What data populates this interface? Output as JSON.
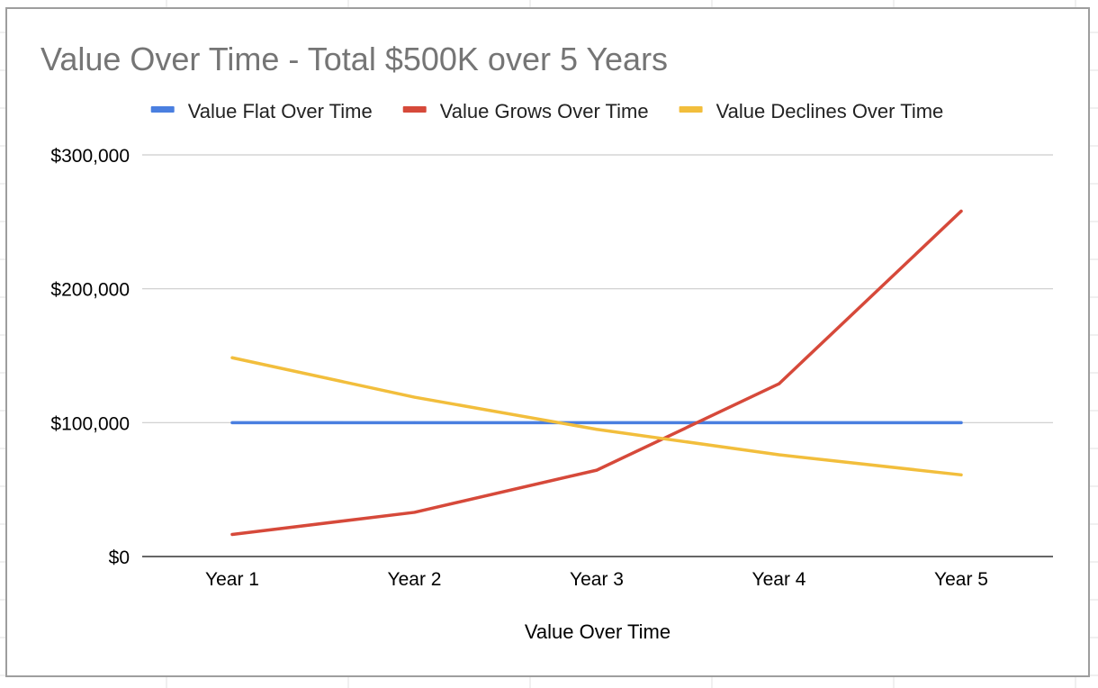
{
  "colors": {
    "flat": "#4a7fe0",
    "grows": "#d6493a",
    "declines": "#f2be3c",
    "gridline": "#cccccc",
    "axis": "#333333",
    "spreadsheet_grid": "#e2e2e2",
    "chart_border": "#9e9e9e"
  },
  "chart_data": {
    "type": "line",
    "title": "Value Over Time - Total $500K over 5 Years",
    "xlabel": "Value Over Time",
    "ylabel": "",
    "categories": [
      "Year 1",
      "Year 2",
      "Year 3",
      "Year 4",
      "Year 5"
    ],
    "ylim": [
      0,
      300000
    ],
    "yticks": [
      0,
      100000,
      200000,
      300000
    ],
    "ytick_labels": [
      "$0",
      "$100,000",
      "$200,000",
      "$300,000"
    ],
    "grid": true,
    "legend_position": "top",
    "series": [
      {
        "name": "Value Flat Over Time",
        "color_key": "flat",
        "values": [
          100000,
          100000,
          100000,
          100000,
          100000
        ]
      },
      {
        "name": "Value Grows Over Time",
        "color_key": "grows",
        "values": [
          16500,
          33000,
          64500,
          129000,
          258000
        ]
      },
      {
        "name": "Value Declines Over Time",
        "color_key": "declines",
        "values": [
          148500,
          119000,
          95000,
          76000,
          61000
        ]
      }
    ]
  }
}
